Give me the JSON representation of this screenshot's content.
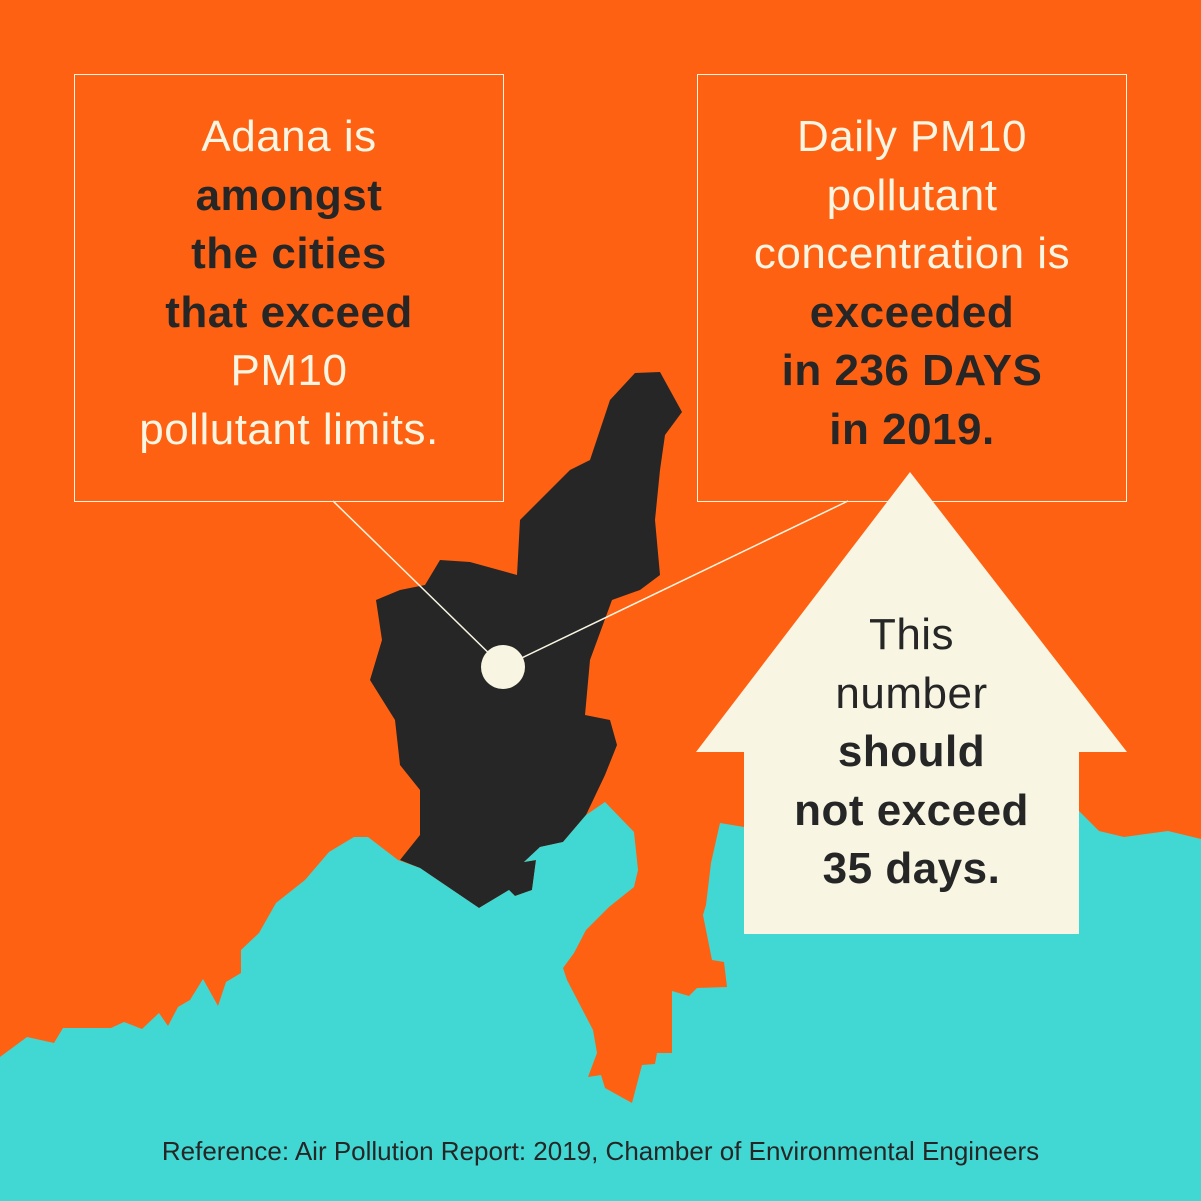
{
  "colors": {
    "background": "#FF6112",
    "sea": "#41D8D4",
    "province": "#262626",
    "callout": "#F8F6E3"
  },
  "left_box": {
    "lines": [
      {
        "text": "Adana is",
        "bold": false
      },
      {
        "text": "amongst",
        "bold": true
      },
      {
        "text": "the cities",
        "bold": true
      },
      {
        "text": "that exceed",
        "bold": true
      },
      {
        "text": "PM10",
        "bold": false
      },
      {
        "text": "pollutant limits.",
        "bold": false
      }
    ]
  },
  "right_box": {
    "lines": [
      {
        "text": "Daily PM10",
        "bold": false
      },
      {
        "text": "pollutant",
        "bold": false
      },
      {
        "text": "concentration is",
        "bold": false
      },
      {
        "text": "exceeded",
        "bold": true
      },
      {
        "text": "in 236 DAYS",
        "bold": true
      },
      {
        "text": "in 2019.",
        "bold": true
      }
    ]
  },
  "arrow": {
    "icon": "up-arrow-icon",
    "lines": [
      {
        "text": "This",
        "bold": false
      },
      {
        "text": "number",
        "bold": false
      },
      {
        "text": "should",
        "bold": true
      },
      {
        "text": "not exceed",
        "bold": true
      },
      {
        "text": "35 days.",
        "bold": true
      }
    ]
  },
  "reference": "Reference: Air Pollution Report: 2019, Chamber of Environmental Engineers"
}
